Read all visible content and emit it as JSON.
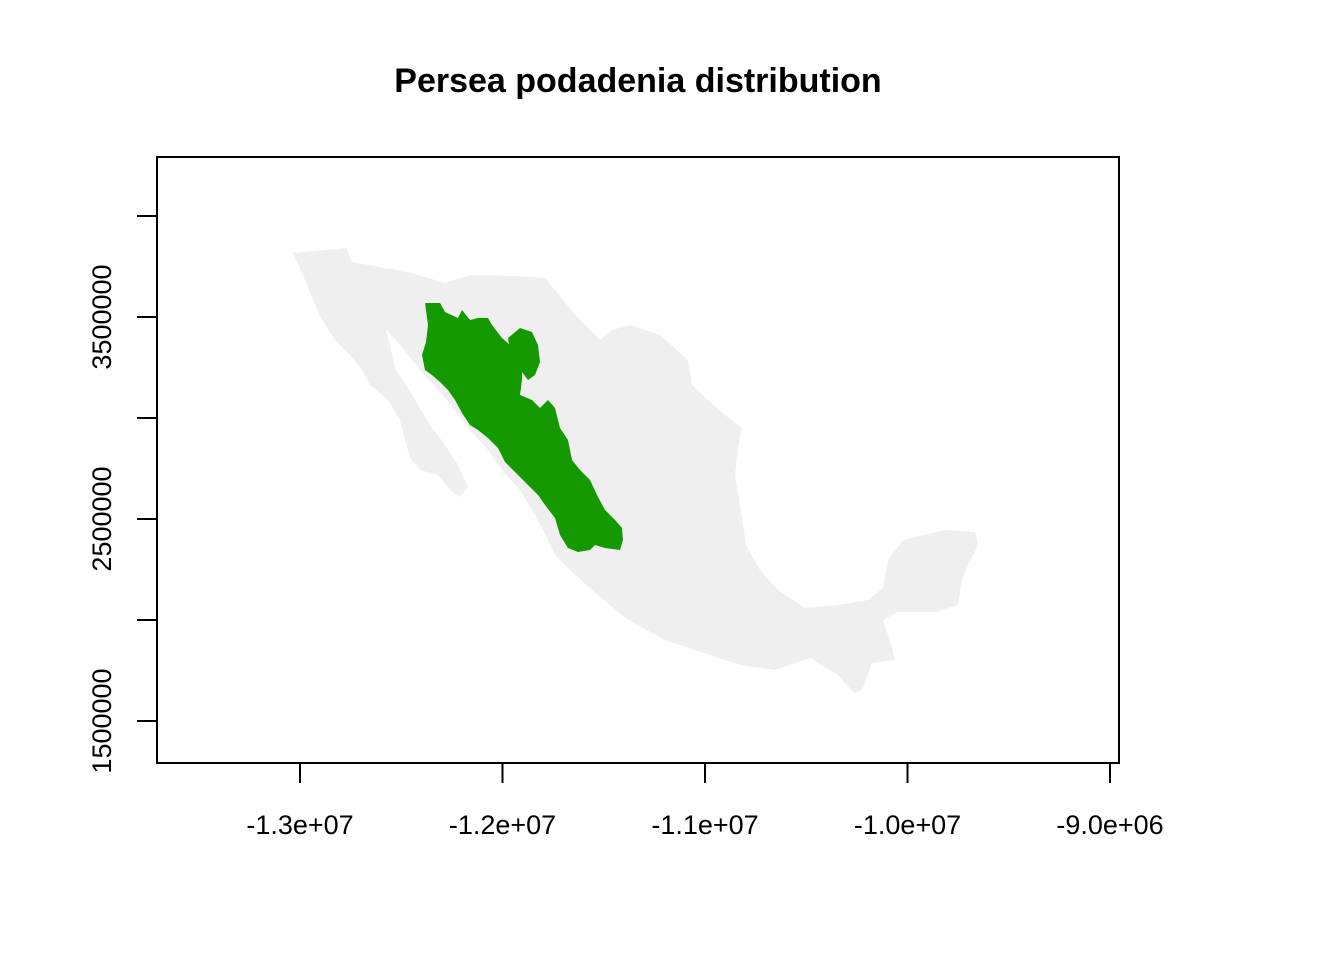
{
  "chart_data": {
    "type": "map",
    "title": "Persea podadenia distribution",
    "xlabel": "",
    "ylabel": "",
    "x_ticks": [
      {
        "value": -13000000,
        "label": "-1.3e+07"
      },
      {
        "value": -12000000,
        "label": "-1.2e+07"
      },
      {
        "value": -11000000,
        "label": "-1.1e+07"
      },
      {
        "value": -10000000,
        "label": "-1.0e+07"
      },
      {
        "value": -9000000,
        "label": "-9.0e+06"
      }
    ],
    "y_ticks": [
      {
        "value": 1500000,
        "label": "1500000"
      },
      {
        "value": 2000000,
        "label": ""
      },
      {
        "value": 2500000,
        "label": "2500000"
      },
      {
        "value": 3000000,
        "label": ""
      },
      {
        "value": 3500000,
        "label": "3500000"
      },
      {
        "value": 4000000,
        "label": ""
      }
    ],
    "xlim": [
      -13700000,
      -8960000
    ],
    "ylim": [
      1300000,
      4300000
    ],
    "layers": [
      {
        "role": "basemap",
        "region": "Mexico",
        "color": "#efefef"
      },
      {
        "role": "distribution",
        "region": "Sierra Madre Occidental",
        "color": "#149a00"
      }
    ]
  }
}
